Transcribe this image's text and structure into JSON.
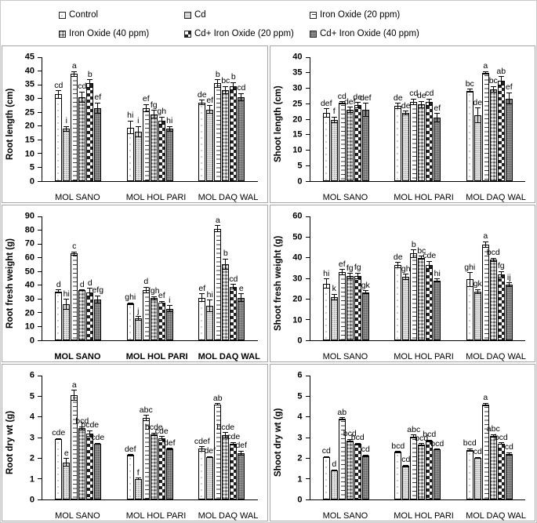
{
  "legend": {
    "items": [
      {
        "label": "Control",
        "pattern": "control"
      },
      {
        "label": "Cd",
        "pattern": "cd"
      },
      {
        "label": "Iron Oxide (20 ppm)",
        "pattern": "io20"
      },
      {
        "label": "Iron Oxide (40 ppm)",
        "pattern": "io40"
      },
      {
        "label": "Cd+ Iron Oxide (20 ppm)",
        "pattern": "ck20"
      },
      {
        "label": "Cd+ Iron Oxide (40 ppm)",
        "pattern": "ck40"
      }
    ]
  },
  "chart_data": [
    {
      "type": "bar",
      "ylabel": "Root length (cm)",
      "ylim": [
        0,
        45
      ],
      "ytick": 5,
      "categories": [
        "MOL SANO",
        "MOL HOL PARI",
        "MOL DAQ WAL"
      ],
      "categories_bold": false,
      "series": [
        {
          "name": "Control",
          "values": [
            31.5,
            19.5,
            28.5
          ],
          "errors": [
            1.5,
            2.5,
            1.0
          ],
          "letters": [
            "cd",
            "hi",
            "de"
          ]
        },
        {
          "name": "Cd",
          "values": [
            19.0,
            18.0,
            26.0
          ],
          "errors": [
            1.0,
            2.0,
            1.5
          ],
          "letters": [
            "i",
            "i",
            "ef"
          ]
        },
        {
          "name": "Iron Oxide (20 ppm)",
          "values": [
            39.0,
            26.5,
            35.5
          ],
          "errors": [
            1.0,
            1.5,
            1.5
          ],
          "letters": [
            "a",
            "ef",
            "b"
          ]
        },
        {
          "name": "Iron Oxide (40 ppm)",
          "values": [
            30.5,
            24.3,
            33.0
          ],
          "errors": [
            2.0,
            1.5,
            1.5
          ],
          "letters": [
            "cd",
            "fg",
            "bc"
          ]
        },
        {
          "name": "Cd+ Iron Oxide (20 ppm)",
          "values": [
            35.5,
            22.0,
            34.5
          ],
          "errors": [
            1.5,
            1.5,
            1.5
          ],
          "letters": [
            "b",
            "gh",
            "b"
          ]
        },
        {
          "name": "Cd+ Iron Oxide (40 ppm)",
          "values": [
            26.5,
            19.0,
            30.5
          ],
          "errors": [
            2.0,
            1.0,
            1.5
          ],
          "letters": [
            "ef",
            "hi",
            "cd"
          ]
        }
      ]
    },
    {
      "type": "bar",
      "ylabel": "Shoot length (cm)",
      "ylim": [
        0,
        40
      ],
      "ytick": 5,
      "categories": [
        "MOL SANO",
        "MOL HOL PARI",
        "MOL DAQ WAL"
      ],
      "categories_bold": false,
      "series": [
        {
          "name": "Control",
          "values": [
            22.0,
            24.2,
            29.2
          ],
          "errors": [
            1.5,
            1.0,
            0.6
          ],
          "letters": [
            "def",
            "de",
            "bc"
          ]
        },
        {
          "name": "Cd",
          "values": [
            19.8,
            22.0,
            21.3
          ],
          "errors": [
            1.0,
            0.7,
            2.5
          ],
          "letters": [
            "f",
            "de",
            "de"
          ]
        },
        {
          "name": "Iron Oxide (20 ppm)",
          "values": [
            25.3,
            25.6,
            35.0
          ],
          "errors": [
            0.5,
            1.0,
            0.5
          ],
          "letters": [
            "cd",
            "cd",
            "a"
          ]
        },
        {
          "name": "Iron Oxide (40 ppm)",
          "values": [
            23.0,
            24.7,
            29.7
          ],
          "errors": [
            1.0,
            1.2,
            1.0
          ],
          "letters": [
            "def",
            "de",
            "bc"
          ]
        },
        {
          "name": "Cd+ Iron Oxide (20 ppm)",
          "values": [
            24.5,
            25.5,
            32.4
          ],
          "errors": [
            1.0,
            1.2,
            1.5
          ],
          "letters": [
            "de",
            "cd",
            "ab"
          ]
        },
        {
          "name": "Cd+ Iron Oxide (40 ppm)",
          "values": [
            23.0,
            20.5,
            26.7
          ],
          "errors": [
            2.2,
            1.5,
            2.0
          ],
          "letters": [
            "def",
            "ef",
            "ef"
          ]
        }
      ]
    },
    {
      "type": "bar",
      "ylabel": "Root fresh weight (g)",
      "ylim": [
        0,
        90
      ],
      "ytick": 10,
      "categories": [
        "MOL SANO",
        "MOL HOL PARI",
        "MOL DAQ WAL"
      ],
      "categories_bold": true,
      "series": [
        {
          "name": "Control",
          "values": [
            35.5,
            26.5,
            31.0
          ],
          "errors": [
            1.5,
            1.0,
            3.0
          ],
          "letters": [
            "d",
            "ghi",
            "ef"
          ]
        },
        {
          "name": "Cd",
          "values": [
            26.0,
            16.0,
            25.0
          ],
          "errors": [
            4.0,
            1.5,
            4.5
          ],
          "letters": [
            "hi",
            "j",
            "hi"
          ]
        },
        {
          "name": "Iron Oxide (20 ppm)",
          "values": [
            63.0,
            36.5,
            81.0
          ],
          "errors": [
            1.5,
            2.5,
            2.5
          ],
          "letters": [
            "c",
            "d",
            "a"
          ]
        },
        {
          "name": "Iron Oxide (40 ppm)",
          "values": [
            36.5,
            30.5,
            55.5
          ],
          "errors": [
            0.5,
            1.5,
            4.0
          ],
          "letters": [
            "d",
            "fgh",
            "b"
          ]
        },
        {
          "name": "Cd+ Iron Oxide (20 ppm)",
          "values": [
            35.0,
            27.5,
            39.0
          ],
          "errors": [
            3.0,
            1.0,
            2.0
          ],
          "letters": [
            "d",
            "ef",
            "cd"
          ]
        },
        {
          "name": "Cd+ Iron Oxide (40 ppm)",
          "values": [
            29.5,
            23.0,
            31.0
          ],
          "errors": [
            3.0,
            2.5,
            3.0
          ],
          "letters": [
            "efg",
            "i",
            "e"
          ]
        }
      ]
    },
    {
      "type": "bar",
      "ylabel": "Shoot fresh weight (g)",
      "ylim": [
        0,
        60
      ],
      "ytick": 10,
      "categories": [
        "MOL SANO",
        "MOL HOL PARI",
        "MOL DAQ WAL"
      ],
      "categories_bold": false,
      "series": [
        {
          "name": "Control",
          "values": [
            27.5,
            36.3,
            29.5
          ],
          "errors": [
            2.5,
            1.5,
            3.5
          ],
          "letters": [
            "hi",
            "de",
            "ghi"
          ]
        },
        {
          "name": "Cd",
          "values": [
            21.0,
            30.7,
            23.5
          ],
          "errors": [
            1.5,
            1.5,
            1.2
          ],
          "letters": [
            "k",
            "gh",
            "gk"
          ]
        },
        {
          "name": "Iron Oxide (20 ppm)",
          "values": [
            33.0,
            42.0,
            46.5
          ],
          "errors": [
            1.5,
            2.0,
            1.5
          ],
          "letters": [
            "ef",
            "b",
            "a"
          ]
        },
        {
          "name": "Iron Oxide (40 ppm)",
          "values": [
            31.0,
            40.0,
            39.0
          ],
          "errors": [
            1.5,
            1.0,
            1.0
          ],
          "letters": [
            "fg",
            "bc",
            "bcd"
          ]
        },
        {
          "name": "Cd+ Iron Oxide (20 ppm)",
          "values": [
            31.3,
            36.5,
            32.0
          ],
          "errors": [
            1.5,
            2.0,
            1.5
          ],
          "letters": [
            "fg",
            "cde",
            "fg"
          ]
        },
        {
          "name": "Cd+ Iron Oxide (40 ppm)",
          "values": [
            23.3,
            29.0,
            27.0
          ],
          "errors": [
            1.0,
            1.0,
            1.0
          ],
          "letters": [
            "gk",
            "hi",
            "ij"
          ]
        }
      ]
    },
    {
      "type": "bar",
      "ylabel": "Root dry wt (g)",
      "ylim": [
        0,
        6
      ],
      "ytick": 1,
      "categories": [
        "MOL SANO",
        "MOL HOL PARI",
        "MOL DAQ WAL"
      ],
      "categories_bold": false,
      "series": [
        {
          "name": "Control",
          "values": [
            2.93,
            2.15,
            2.45
          ],
          "errors": [
            0.05,
            0.05,
            0.12
          ],
          "letters": [
            "cde",
            "def",
            "cdef"
          ]
        },
        {
          "name": "Cd",
          "values": [
            1.8,
            1.0,
            2.05
          ],
          "errors": [
            0.2,
            0.05,
            0.05
          ],
          "letters": [
            "e",
            "f",
            "def"
          ]
        },
        {
          "name": "Iron Oxide (20 ppm)",
          "values": [
            5.05,
            3.95,
            4.6
          ],
          "errors": [
            0.25,
            0.15,
            0.06
          ],
          "letters": [
            "a",
            "abc",
            "ab"
          ]
        },
        {
          "name": "Iron Oxide (40 ppm)",
          "values": [
            3.45,
            3.15,
            3.1
          ],
          "errors": [
            0.1,
            0.08,
            0.15
          ],
          "letters": [
            "bcd",
            "bcde",
            "bcde"
          ]
        },
        {
          "name": "Cd+ Iron Oxide (20 ppm)",
          "values": [
            3.2,
            2.95,
            2.7
          ],
          "errors": [
            0.15,
            0.12,
            0.08
          ],
          "letters": [
            "bcde",
            "cde",
            "cde"
          ]
        },
        {
          "name": "Cd+ Iron Oxide (40 ppm)",
          "values": [
            2.7,
            2.45,
            2.25
          ],
          "errors": [
            0.05,
            0.05,
            0.12
          ],
          "letters": [
            "cde",
            "def",
            "def"
          ]
        }
      ]
    },
    {
      "type": "bar",
      "ylabel": "Shoot dry wt (g)",
      "ylim": [
        0,
        6
      ],
      "ytick": 1,
      "categories": [
        "MOL SANO",
        "MOL HOL PARI",
        "MOL DAQ WAL"
      ],
      "categories_bold": false,
      "series": [
        {
          "name": "Control",
          "values": [
            2.05,
            2.3,
            2.4
          ],
          "errors": [
            0.05,
            0.05,
            0.08
          ],
          "letters": [
            "cd",
            "bcd",
            "bcd"
          ]
        },
        {
          "name": "Cd",
          "values": [
            1.4,
            1.62,
            2.02
          ],
          "errors": [
            0.05,
            0.06,
            0.05
          ],
          "letters": [
            "d",
            "cd",
            "cd"
          ]
        },
        {
          "name": "Iron Oxide (20 ppm)",
          "values": [
            3.9,
            3.05,
            4.6
          ],
          "errors": [
            0.08,
            0.1,
            0.08
          ],
          "letters": [
            "ab",
            "abc",
            "a"
          ]
        },
        {
          "name": "Iron Oxide (40 ppm)",
          "values": [
            2.85,
            2.65,
            3.08
          ],
          "errors": [
            0.08,
            0.08,
            0.08
          ],
          "letters": [
            "bcd",
            "bcd",
            "abc"
          ]
        },
        {
          "name": "Cd+ Iron Oxide (20 ppm)",
          "values": [
            2.68,
            2.83,
            2.7
          ],
          "errors": [
            0.06,
            0.07,
            0.06
          ],
          "letters": [
            "bcd",
            "bcd",
            "bcd"
          ]
        },
        {
          "name": "Cd+ Iron Oxide (40 ppm)",
          "values": [
            2.12,
            2.42,
            2.2
          ],
          "errors": [
            0.05,
            0.04,
            0.08
          ],
          "letters": [
            "cd",
            "bcd",
            "cd"
          ]
        }
      ]
    }
  ]
}
